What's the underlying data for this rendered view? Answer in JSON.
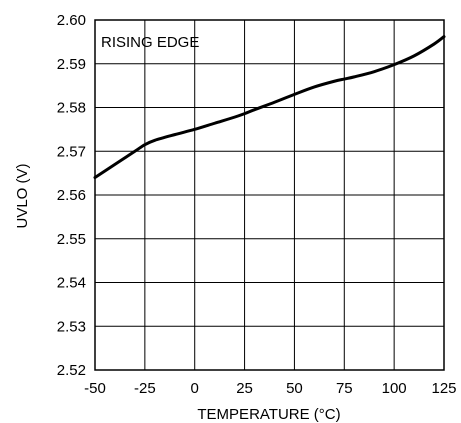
{
  "chart_data": {
    "type": "line",
    "title": "",
    "annotation": "RISING EDGE",
    "xlabel": "TEMPERATURE (°C)",
    "ylabel": "UVLO (V)",
    "xlim": [
      -50,
      125
    ],
    "ylim": [
      2.52,
      2.6
    ],
    "x_ticks": [
      -50,
      -25,
      0,
      25,
      50,
      75,
      100,
      125
    ],
    "y_ticks": [
      2.52,
      2.53,
      2.54,
      2.55,
      2.56,
      2.57,
      2.58,
      2.59,
      2.6
    ],
    "grid": true,
    "line_color": "#000000",
    "series": [
      {
        "x": [
          -50,
          -40,
          -30,
          -25,
          -20,
          -10,
          0,
          10,
          20,
          25,
          30,
          40,
          50,
          60,
          70,
          75,
          80,
          90,
          100,
          110,
          120,
          125
        ],
        "y": [
          2.564,
          2.567,
          2.57,
          2.5715,
          2.5725,
          2.5738,
          2.575,
          2.5764,
          2.5778,
          2.5786,
          2.5795,
          2.5812,
          2.583,
          2.5847,
          2.586,
          2.5865,
          2.587,
          2.5882,
          2.5898,
          2.5918,
          2.5945,
          2.5962
        ]
      }
    ]
  }
}
